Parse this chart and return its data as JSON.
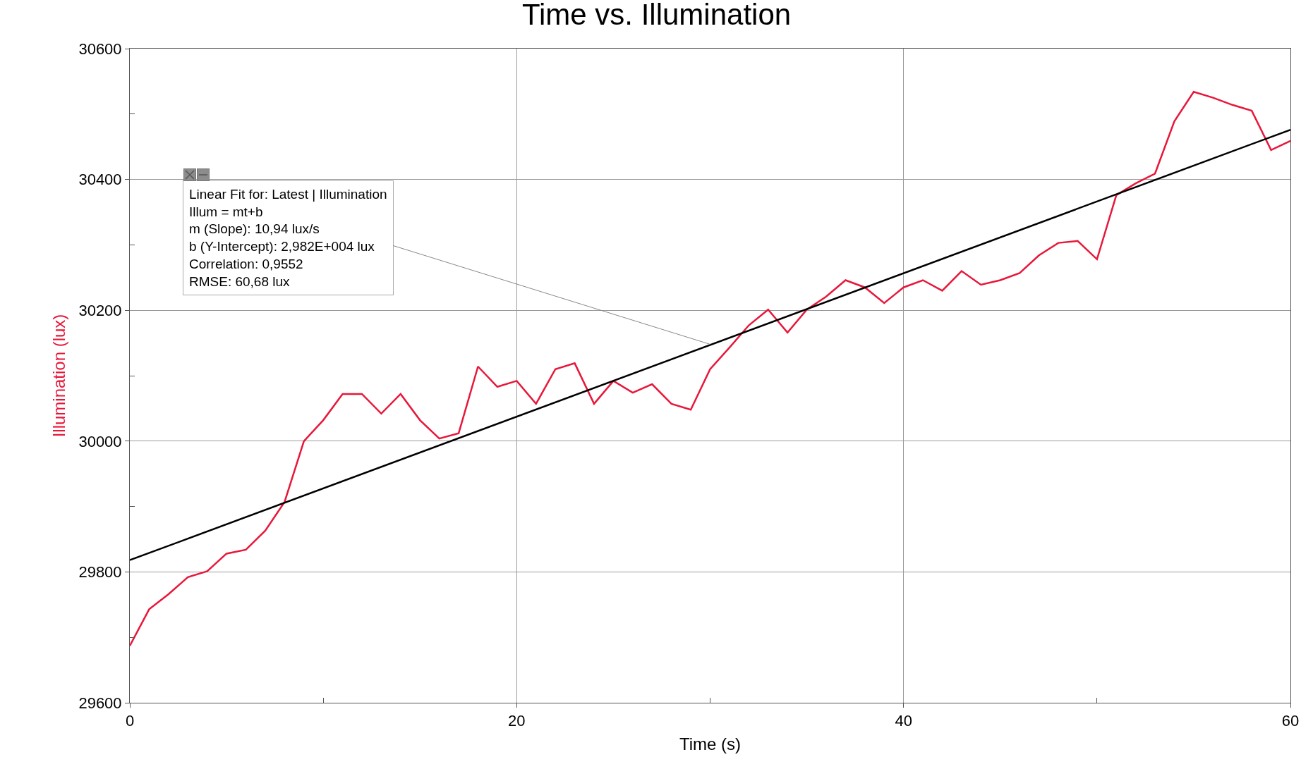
{
  "chart_data": {
    "type": "line",
    "title": "Time vs. Illumination",
    "xlabel": "Time (s)",
    "ylabel": "Illumination (lux)",
    "x": [
      0,
      1,
      2,
      3,
      4,
      5,
      6,
      7,
      8,
      9,
      10,
      11,
      12,
      13,
      14,
      15,
      16,
      17,
      18,
      19,
      20,
      21,
      22,
      23,
      24,
      25,
      26,
      27,
      28,
      29,
      30,
      31,
      32,
      33,
      34,
      35,
      36,
      37,
      38,
      39,
      40,
      41,
      42,
      43,
      44,
      45,
      46,
      47,
      48,
      49,
      50,
      51,
      52,
      53,
      54,
      55,
      56,
      57,
      58,
      59,
      60
    ],
    "series": [
      {
        "color": "#e8173a",
        "values": [
          29687,
          29743,
          29766,
          29792,
          29801,
          29828,
          29834,
          29863,
          29907,
          30000,
          30032,
          30072,
          30072,
          30042,
          30072,
          30032,
          30004,
          30012,
          30114,
          30083,
          30092,
          30057,
          30110,
          30119,
          30057,
          30092,
          30074,
          30087,
          30057,
          30048,
          30110,
          30143,
          30177,
          30201,
          30166,
          30201,
          30221,
          30246,
          30235,
          30211,
          30235,
          30246,
          30230,
          30260,
          30239,
          30246,
          30257,
          30284,
          30303,
          30306,
          30278,
          30376,
          30394,
          30409,
          30489,
          30534,
          30525,
          30514,
          30505,
          30445,
          30459
        ]
      },
      {
        "type": "line",
        "color": "#000000",
        "x": [
          0,
          60
        ],
        "values": [
          29818,
          30476
        ]
      }
    ],
    "xlim": [
      0,
      60
    ],
    "xticks": [
      0,
      {
        "value": 10,
        "label": null
      },
      20,
      {
        "value": 30,
        "label": null
      },
      40,
      {
        "value": 50,
        "label": null
      },
      60
    ],
    "ylim": [
      29600,
      30600
    ],
    "yticks": [
      29600,
      {
        "value": 29700,
        "label": null
      },
      29800,
      {
        "value": 29900,
        "label": null
      },
      30000,
      {
        "value": 30100,
        "label": null
      },
      30200,
      {
        "value": 30300,
        "label": null
      },
      30400,
      {
        "value": 30500,
        "label": null
      },
      30600
    ],
    "grid": true,
    "marker": "none",
    "line_style": "solid",
    "annotations": [
      {
        "text": "Linear Fit for: Latest | Illumination\nIllum = mt+b\nm (Slope): 10,94 lux/s\nb (Y-Intercept): 2,982E+004 lux\nCorrelation: 0,9552\nRMSE: 60,68 lux",
        "x": 30,
        "y": 30148
      }
    ]
  }
}
